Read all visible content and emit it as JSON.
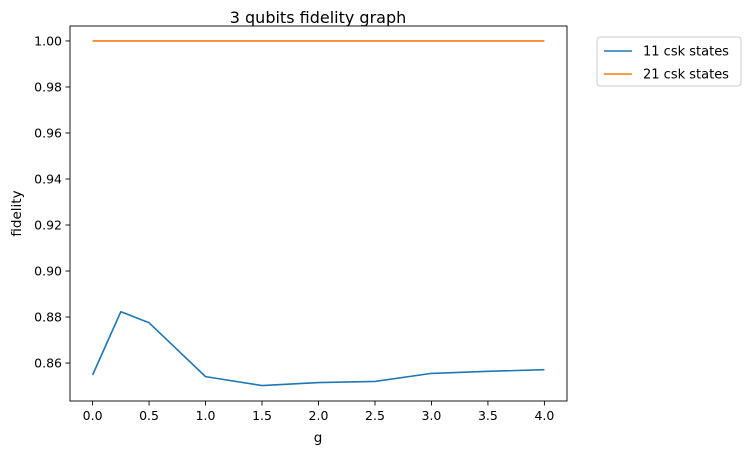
{
  "chart_data": {
    "type": "line",
    "title": "3 qubits fidelity graph",
    "xlabel": "g",
    "ylabel": "fidelity",
    "xlim": [
      -0.2,
      4.2
    ],
    "ylim": [
      0.8435,
      1.0065
    ],
    "xticks": [
      0.0,
      0.5,
      1.0,
      1.5,
      2.0,
      2.5,
      3.0,
      3.5,
      4.0
    ],
    "xtick_labels": [
      "0.0",
      "0.5",
      "1.0",
      "1.5",
      "2.0",
      "2.5",
      "3.0",
      "3.5",
      "4.0"
    ],
    "yticks": [
      0.86,
      0.88,
      0.9,
      0.92,
      0.94,
      0.96,
      0.98,
      1.0
    ],
    "ytick_labels": [
      "0.86",
      "0.88",
      "0.90",
      "0.92",
      "0.94",
      "0.96",
      "0.98",
      "1.00"
    ],
    "grid": false,
    "legend_position": "outside-top-right",
    "series": [
      {
        "name": "11 csk states",
        "color": "#1f77b4",
        "x": [
          0.0,
          0.25,
          0.5,
          1.0,
          1.5,
          2.0,
          2.5,
          3.0,
          3.5,
          4.0
        ],
        "y": [
          0.8548,
          0.8823,
          0.8775,
          0.8541,
          0.8502,
          0.8515,
          0.852,
          0.8555,
          0.8564,
          0.8571
        ]
      },
      {
        "name": "21 csk states",
        "color": "#ff7f0e",
        "x": [
          0.0,
          0.25,
          0.5,
          1.0,
          1.5,
          2.0,
          2.5,
          3.0,
          3.5,
          4.0
        ],
        "y": [
          1.0,
          1.0,
          1.0,
          1.0,
          1.0,
          1.0,
          1.0,
          1.0,
          1.0,
          1.0
        ]
      }
    ]
  }
}
